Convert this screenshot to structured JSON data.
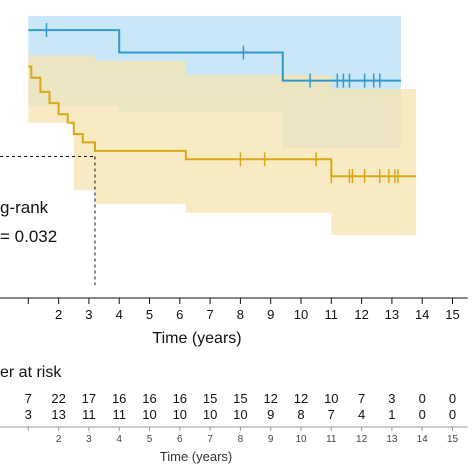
{
  "chart_data": {
    "type": "line",
    "subtype": "kaplan-meier",
    "xlabel": "Time (years)",
    "xticks": [
      2,
      3,
      4,
      5,
      6,
      7,
      8,
      9,
      10,
      11,
      12,
      13,
      14,
      15
    ],
    "xlim": [
      1,
      15.5
    ],
    "grid": false,
    "colors": {
      "blue": "#3399CC",
      "yellow": "#D9A814",
      "blue_band": "#BFE3F5",
      "yellow_band": "#F5E4B0",
      "overlap_band": "#C7D9C3"
    },
    "series": [
      {
        "color": "blue",
        "steps": [
          [
            1,
            0.95
          ],
          [
            4,
            0.95
          ],
          [
            4,
            0.87
          ],
          [
            9.4,
            0.87
          ],
          [
            9.4,
            0.77
          ],
          [
            13.3,
            0.77
          ]
        ],
        "band": [
          [
            1,
            1.0,
            0.68
          ],
          [
            4,
            1.0,
            0.68
          ],
          [
            4,
            1.0,
            0.66
          ],
          [
            9.4,
            1.0,
            0.66
          ],
          [
            9.4,
            1.0,
            0.53
          ],
          [
            13.3,
            1.0,
            0.53
          ]
        ],
        "censor": [
          1.6,
          8.1,
          10.3,
          11.2,
          11.4,
          11.6,
          12.1,
          12.4,
          12.6
        ]
      },
      {
        "color": "yellow",
        "steps": [
          [
            1,
            0.82
          ],
          [
            1.1,
            0.82
          ],
          [
            1.1,
            0.78
          ],
          [
            1.4,
            0.78
          ],
          [
            1.4,
            0.73
          ],
          [
            1.7,
            0.73
          ],
          [
            1.7,
            0.69
          ],
          [
            2.0,
            0.69
          ],
          [
            2.0,
            0.65
          ],
          [
            2.3,
            0.65
          ],
          [
            2.3,
            0.62
          ],
          [
            2.5,
            0.62
          ],
          [
            2.5,
            0.58
          ],
          [
            2.8,
            0.58
          ],
          [
            2.8,
            0.55
          ],
          [
            3.2,
            0.55
          ],
          [
            3.2,
            0.52
          ],
          [
            6.2,
            0.52
          ],
          [
            6.2,
            0.49
          ],
          [
            11.0,
            0.49
          ],
          [
            11.0,
            0.43
          ],
          [
            13.8,
            0.43
          ]
        ],
        "band": [
          [
            1,
            0.86,
            0.62
          ],
          [
            2.5,
            0.86,
            0.38
          ],
          [
            3.2,
            0.84,
            0.33
          ],
          [
            6.2,
            0.79,
            0.3
          ],
          [
            9.4,
            0.79,
            0.3
          ],
          [
            11.0,
            0.74,
            0.22
          ],
          [
            13.8,
            0.74,
            0.22
          ]
        ],
        "censor": [
          8.0,
          8.8,
          10.5,
          11.0,
          11.6,
          11.7,
          12.1,
          12.6,
          12.9,
          13.1,
          13.2
        ]
      }
    ],
    "annotations": [
      "g-rank",
      "= 0.032"
    ],
    "reference_x": 3.2,
    "risk_table": {
      "title": "er at risk",
      "times": [
        1,
        2,
        3,
        4,
        5,
        6,
        7,
        8,
        9,
        10,
        11,
        12,
        13,
        14,
        15
      ],
      "rows": [
        [
          "7",
          "22",
          "17",
          "16",
          "16",
          "16",
          "15",
          "15",
          "12",
          "12",
          "10",
          "7",
          "3",
          "0",
          "0"
        ],
        [
          "3",
          "13",
          "11",
          "11",
          "10",
          "10",
          "10",
          "10",
          "9",
          "8",
          "7",
          "4",
          "1",
          "0",
          "0"
        ]
      ],
      "xticks": [
        2,
        3,
        4,
        5,
        6,
        7,
        8,
        9,
        10,
        11,
        12,
        13,
        14,
        15
      ],
      "xlabel": "Time (years)"
    }
  }
}
